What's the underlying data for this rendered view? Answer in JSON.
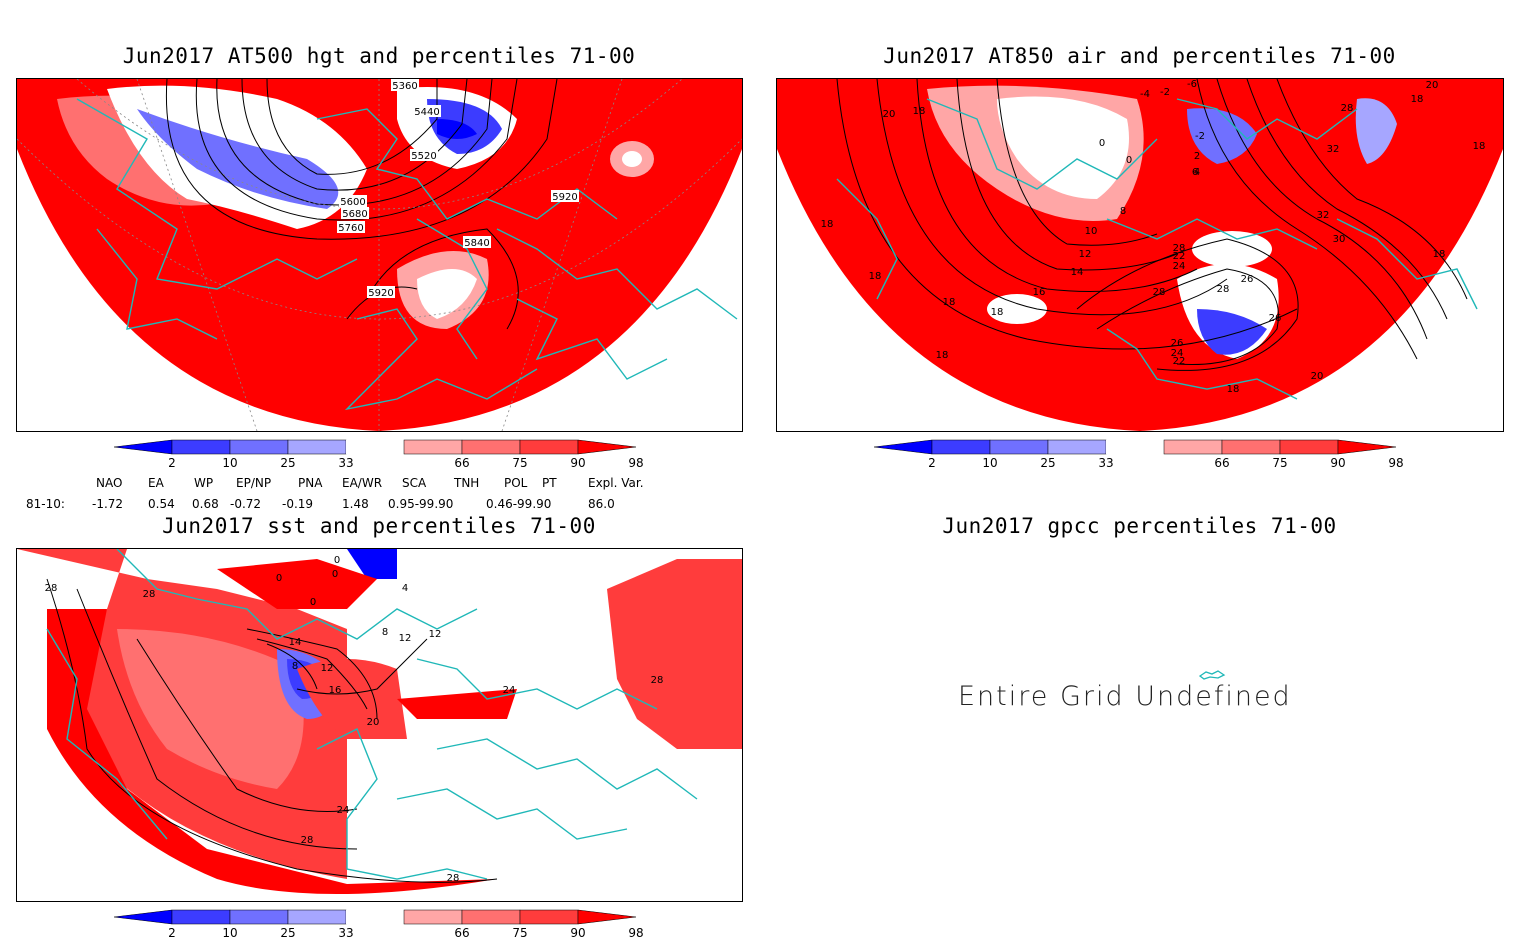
{
  "panels": [
    {
      "title": "Jun2017 AT500 hgt and percentiles 71-00",
      "contour_labels": [
        "5360",
        "5440",
        "5520",
        "5600",
        "5680",
        "5760",
        "5840",
        "5920",
        "5920"
      ]
    },
    {
      "title": "Jun2017 AT850 air and percentiles 71-00",
      "contour_labels": [
        "-6",
        "-4",
        "-2",
        "-2",
        "0",
        "0",
        "2",
        "4",
        "6",
        "8",
        "10",
        "12",
        "14",
        "16",
        "18",
        "18",
        "18",
        "18",
        "18",
        "18",
        "18",
        "18",
        "18",
        "18",
        "20",
        "20",
        "20",
        "22",
        "22",
        "24",
        "24",
        "26",
        "26",
        "26",
        "28",
        "28",
        "28",
        "28",
        "30",
        "32",
        "32"
      ]
    },
    {
      "title": "Jun2017 sst and percentiles 71-00",
      "contour_labels": [
        "28",
        "28",
        "0",
        "0",
        "0",
        "0",
        "4",
        "8",
        "8",
        "12",
        "12",
        "12",
        "14",
        "16",
        "20",
        "24",
        "24",
        "28",
        "28",
        "28"
      ]
    },
    {
      "title": "Jun2017 gpcc percentiles 71-00",
      "message": "Entire Grid Undefined"
    }
  ],
  "colorbar": {
    "labels": [
      "2",
      "10",
      "25",
      "33",
      "66",
      "75",
      "90",
      "98"
    ],
    "colors": [
      "#0000ff",
      "#3c3cff",
      "#7070ff",
      "#a6a6ff",
      "#ffffff",
      "#ffa6a6",
      "#ff7070",
      "#ff3c3c",
      "#ff0000"
    ]
  },
  "indices": {
    "headers": [
      "NAO",
      "EA",
      "WP",
      "EP/NP",
      "PNA",
      "EA/WR",
      "SCA",
      "TNH",
      "POL",
      "PT",
      "Expl. Var."
    ],
    "row_label": "81-10:",
    "values": [
      "-1.72",
      "0.54",
      "0.68",
      "-0.72",
      "-0.19",
      "1.48",
      "0.95-99.90",
      "0.46-99.90",
      "86.0"
    ]
  }
}
